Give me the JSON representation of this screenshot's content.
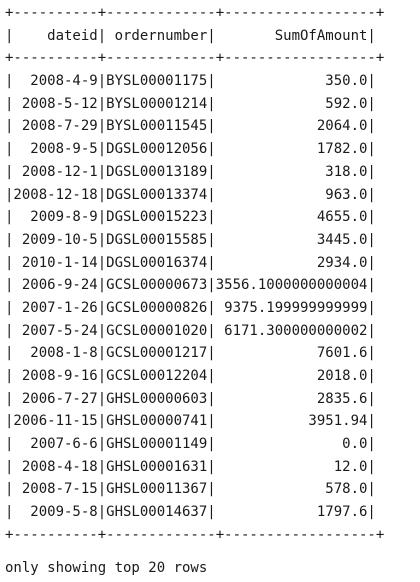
{
  "table": {
    "border_top": "+----------+-------------+------------------+",
    "header_line": "|    dateid| ordernumber|       SumOfAmount|",
    "border_mid": "+----------+-------------+------------------+",
    "rows": [
      "|  2008-4-9|BYSL00001175|             350.0|",
      "| 2008-5-12|BYSL00001214|             592.0|",
      "| 2008-7-29|BYSL00011545|            2064.0|",
      "|  2008-9-5|DGSL00012056|            1782.0|",
      "| 2008-12-1|DGSL00013189|             318.0|",
      "|2008-12-18|DGSL00013374|             963.0|",
      "|  2009-8-9|DGSL00015223|            4655.0|",
      "| 2009-10-5|DGSL00015585|            3445.0|",
      "| 2010-1-14|DGSL00016374|            2934.0|",
      "| 2006-9-24|GCSL00000673|3556.1000000000004|",
      "| 2007-1-26|GCSL00000826| 9375.199999999999|",
      "| 2007-5-24|GCSL00001020| 6171.300000000002|",
      "|  2008-1-8|GCSL00001217|            7601.6|",
      "| 2008-9-16|GCSL00012204|            2018.0|",
      "| 2006-7-27|GHSL00000603|            2835.6|",
      "|2006-11-15|GHSL00000741|           3951.94|",
      "|  2007-6-6|GHSL00001149|               0.0|",
      "| 2008-4-18|GHSL00001631|              12.0|",
      "| 2008-7-15|GHSL00011367|             578.0|",
      "|  2009-5-8|GHSL00014637|            1797.6|"
    ],
    "border_bottom": "+----------+-------------+------------------+"
  },
  "footer": "only showing top 20 rows"
}
